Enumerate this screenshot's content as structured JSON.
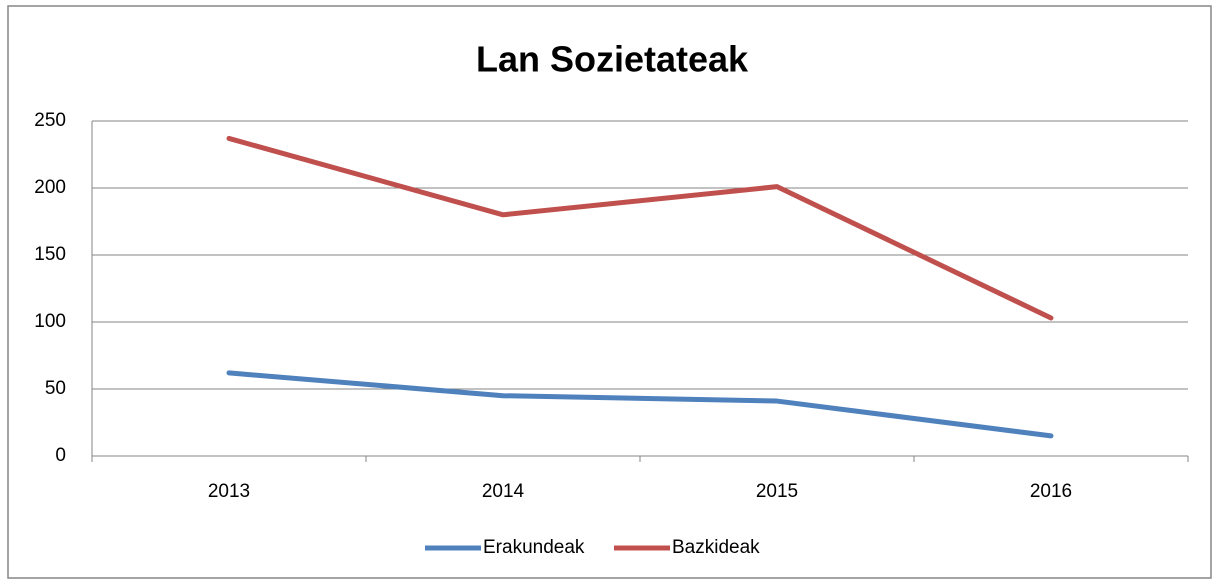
{
  "chart_data": {
    "type": "line",
    "title": "Lan Sozietateak",
    "categories": [
      "2013",
      "2014",
      "2015",
      "2016"
    ],
    "series": [
      {
        "name": "Erakundeak",
        "color": "#4f81bd",
        "values": [
          62,
          45,
          41,
          15
        ]
      },
      {
        "name": "Bazkideak",
        "color": "#c0504d",
        "values": [
          237,
          180,
          201,
          103
        ]
      }
    ],
    "ylim": [
      0,
      250
    ],
    "yticks": [
      0,
      50,
      100,
      150,
      200,
      250
    ],
    "grid": true,
    "legend": "bottom"
  }
}
